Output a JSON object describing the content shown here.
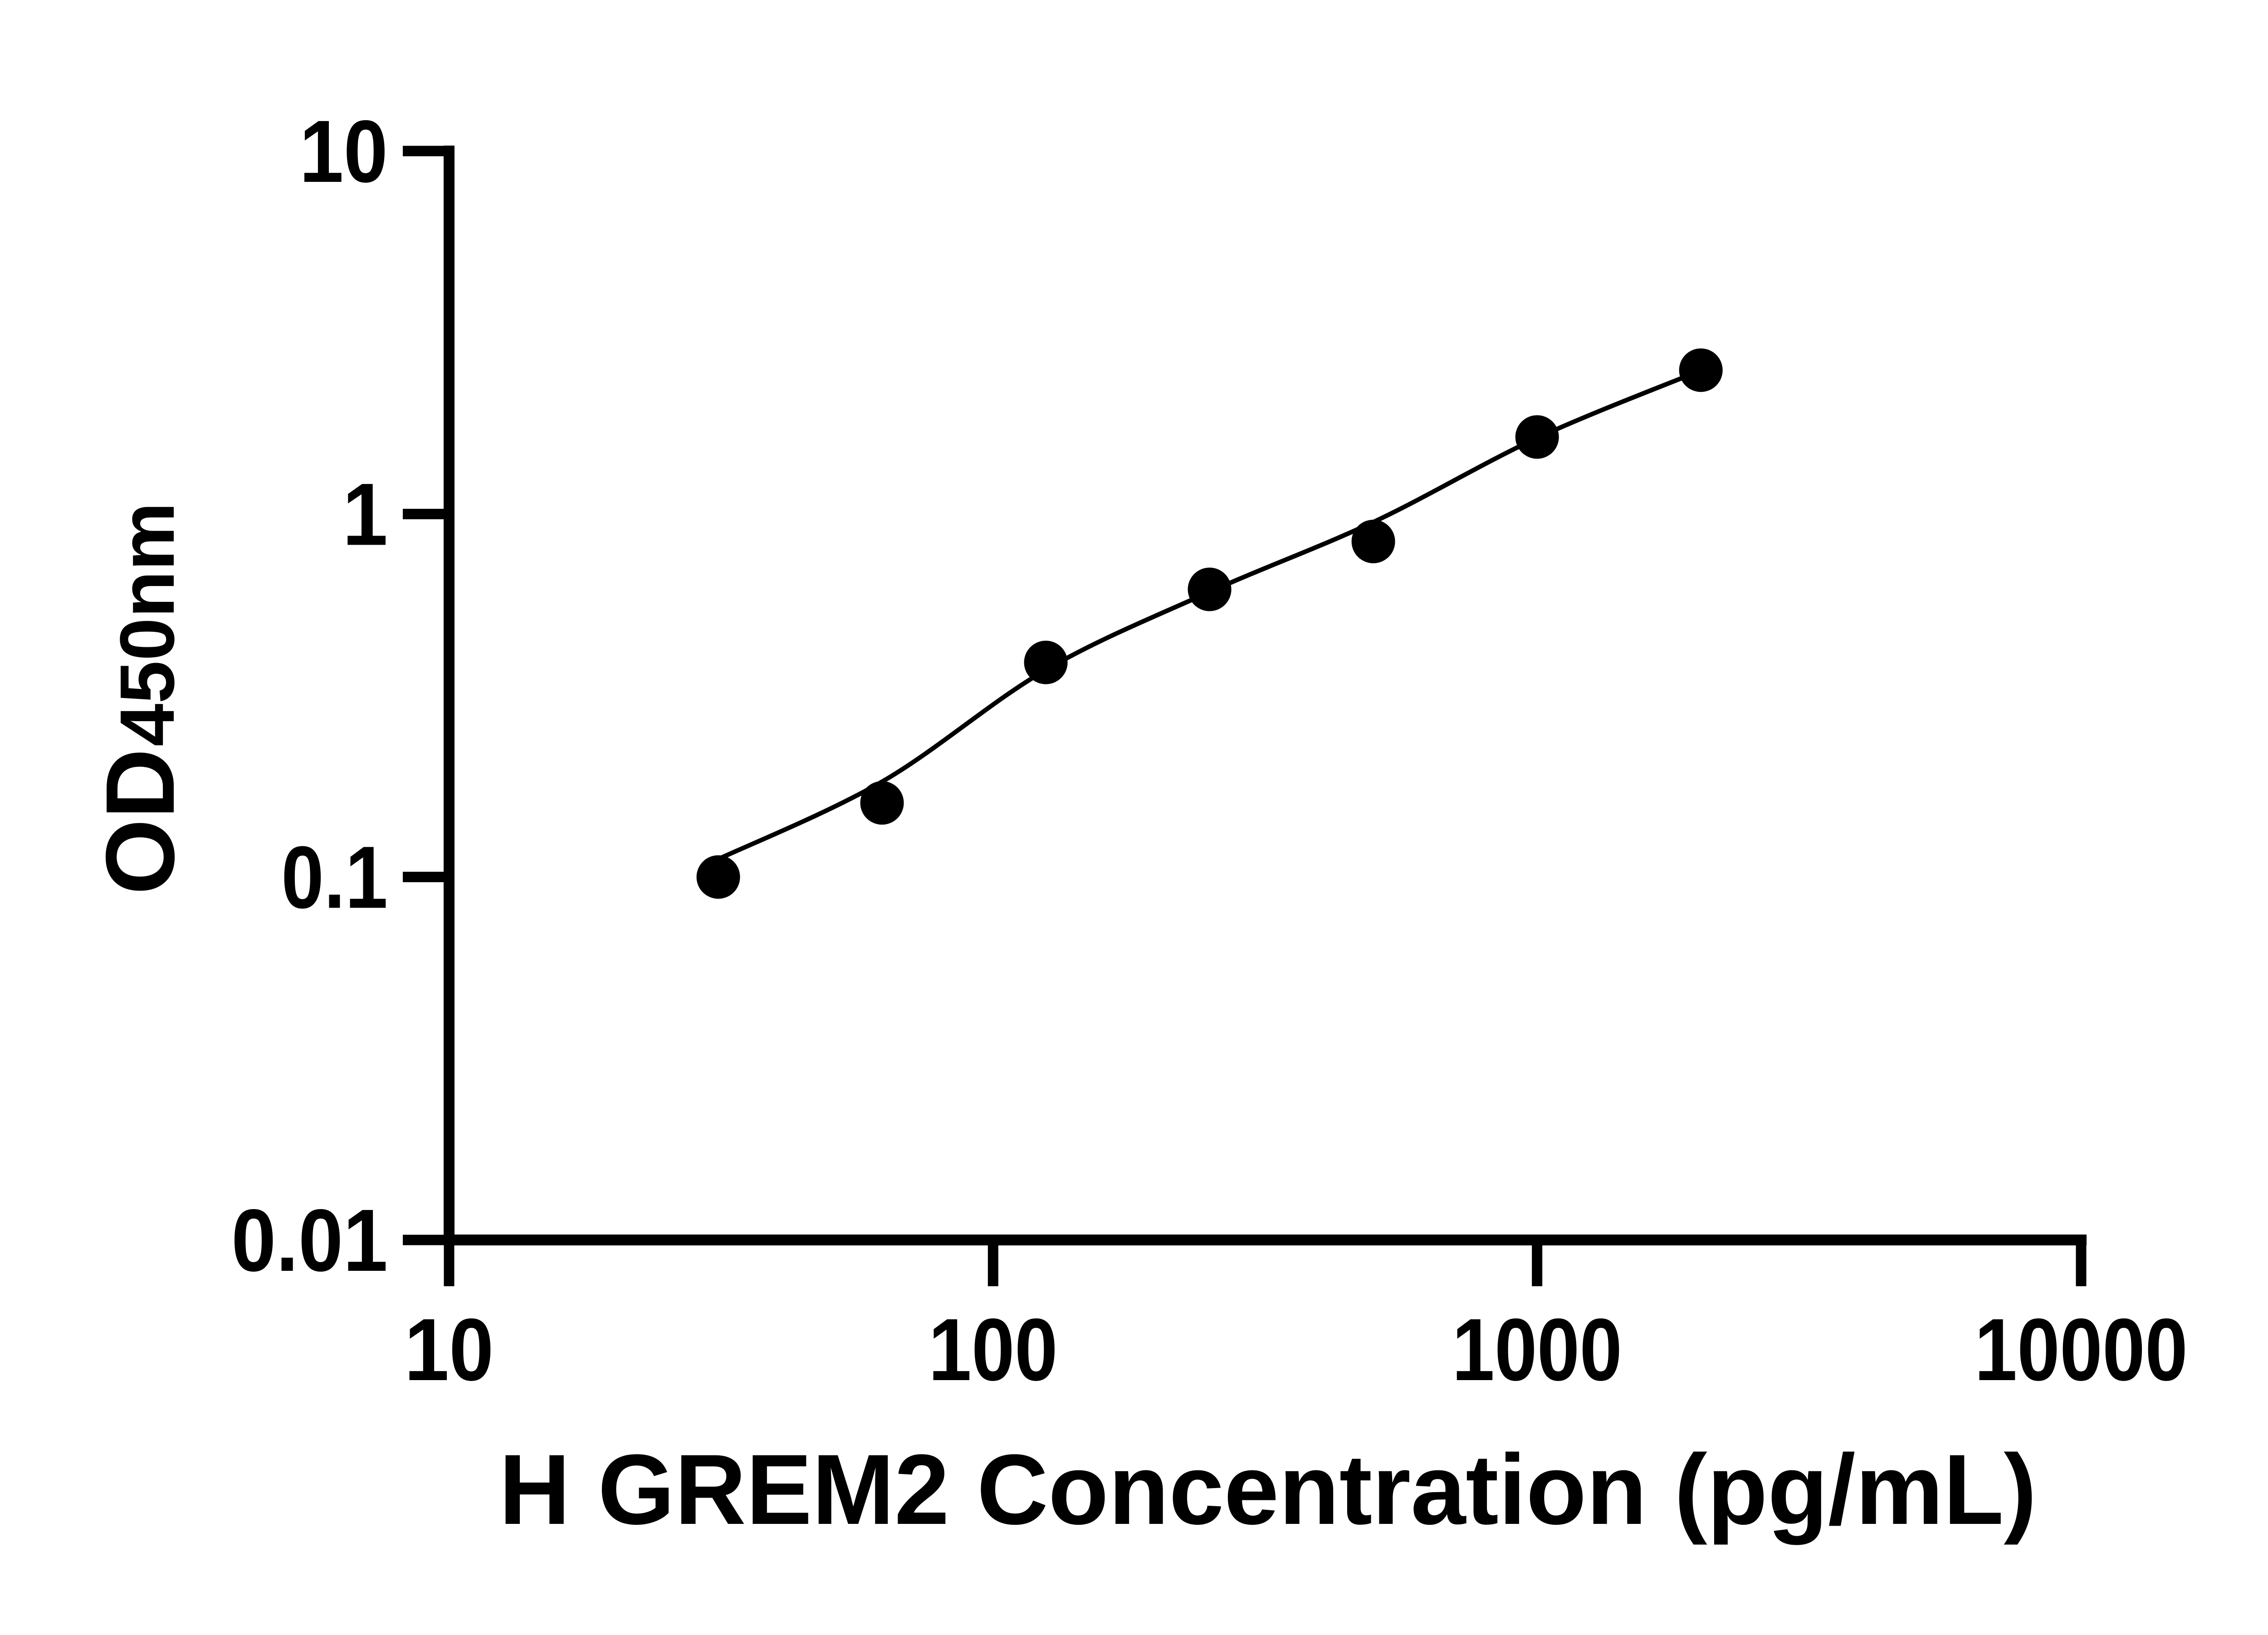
{
  "page": {
    "background_color": "#ffffff",
    "foreground_color": "#000000"
  },
  "chart_data": {
    "type": "scatter",
    "title": "",
    "xlabel": "H GREM2 Concentration (pg/mL)",
    "ylabel_main": "OD",
    "ylabel_sub": "450nm",
    "x_scale": "log10",
    "y_scale": "log10",
    "xlim": [
      10,
      10000
    ],
    "ylim": [
      0.01,
      10
    ],
    "x_ticks": [
      10,
      100,
      1000,
      10000
    ],
    "x_tick_labels": [
      "10",
      "100",
      "1000",
      "10000"
    ],
    "y_ticks": [
      0.01,
      0.1,
      1,
      10
    ],
    "y_tick_labels": [
      "0.01",
      "0.1",
      "1",
      "10"
    ],
    "grid": false,
    "legend": false,
    "marker_color": "#000000",
    "line_color": "#000000",
    "series": [
      {
        "name": "standards",
        "type": "scatter",
        "marker": "circle",
        "x": [
          31.25,
          62.5,
          125,
          250,
          500,
          1000,
          2000
        ],
        "y": [
          0.1,
          0.16,
          0.39,
          0.62,
          0.84,
          1.63,
          2.49
        ]
      },
      {
        "name": "fit-curve",
        "type": "line",
        "x": [
          31.25,
          62.5,
          125,
          250,
          500,
          1000,
          2000
        ],
        "y": [
          0.112,
          0.183,
          0.372,
          0.61,
          0.95,
          1.62,
          2.485
        ]
      }
    ]
  }
}
